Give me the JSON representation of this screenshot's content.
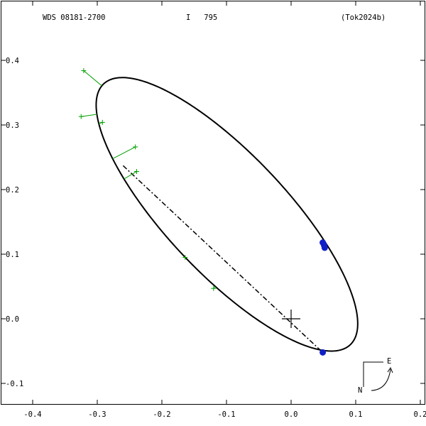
{
  "header": {
    "wds": "WDS 08181-2700",
    "discoverer": "I   795",
    "reference": "(Tok2024b)"
  },
  "compass": {
    "east": "E",
    "north": "N"
  },
  "chart_data": {
    "type": "scatter",
    "xlim": [
      -0.4,
      0.2
    ],
    "ylim": [
      -0.14,
      0.4
    ],
    "x_ticks": [
      -0.4,
      -0.3,
      -0.2,
      -0.1,
      0.0,
      0.1,
      0.2
    ],
    "y_ticks": [
      -0.1,
      0.0,
      0.1,
      0.2,
      0.3,
      0.4
    ],
    "x_tick_labels": [
      "-0.4",
      "-0.3",
      "-0.2",
      "-0.1",
      "0.0",
      "0.1",
      "0.2"
    ],
    "y_tick_labels": [
      "-0.1",
      "0.0",
      "0.1",
      "0.2",
      "0.3",
      "0.4"
    ],
    "primary_star": [
      0.0,
      0.0
    ],
    "orbit_ellipse": {
      "center": [
        -0.0993,
        0.1617
      ],
      "semi_major": 0.2778,
      "semi_minor": 0.0927,
      "major_axis_angle_deg": -46.6
    },
    "line_of_nodes": [
      [
        -0.26,
        0.237
      ],
      [
        0.05,
        -0.053
      ]
    ],
    "observations_micrometric": [
      {
        "x": -0.321,
        "y": 0.384
      },
      {
        "x": -0.325,
        "y": 0.313
      },
      {
        "x": -0.292,
        "y": 0.304
      },
      {
        "x": -0.241,
        "y": 0.266
      },
      {
        "x": -0.239,
        "y": 0.228
      },
      {
        "x": -0.164,
        "y": 0.095
      },
      {
        "x": -0.12,
        "y": 0.047
      }
    ],
    "observations_interferometric": [
      {
        "x": 0.049,
        "y": 0.118
      },
      {
        "x": 0.051,
        "y": 0.114
      },
      {
        "x": 0.052,
        "y": 0.11
      },
      {
        "x": 0.049,
        "y": -0.052
      }
    ],
    "colors": {
      "orbit": "#000000",
      "micrometric": "#00a000",
      "interferometric": "#1020c8"
    }
  }
}
